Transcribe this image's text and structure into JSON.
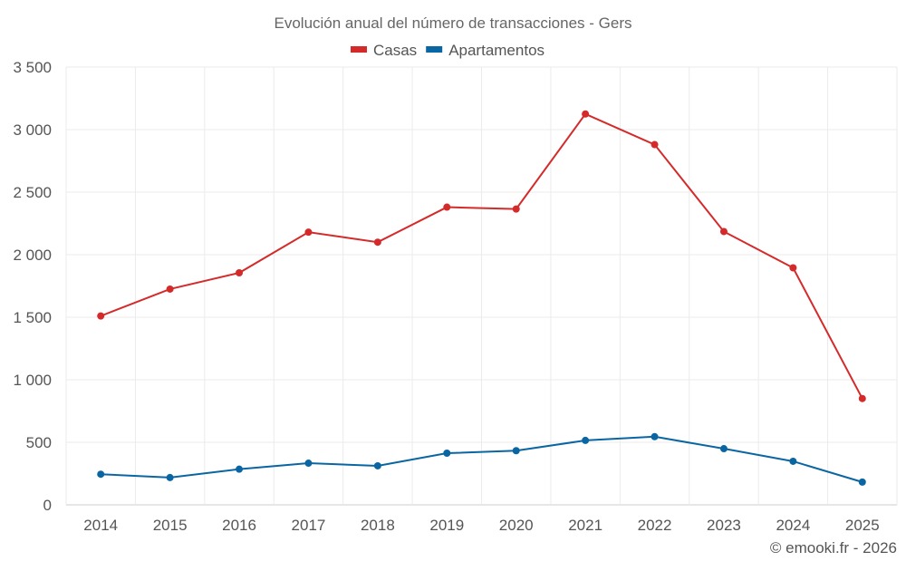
{
  "chart_data": {
    "type": "line",
    "title": "Evolución anual del número de transacciones - Gers",
    "xlabel": "",
    "ylabel": "",
    "categories": [
      "2014",
      "2015",
      "2016",
      "2017",
      "2018",
      "2019",
      "2020",
      "2021",
      "2022",
      "2023",
      "2024",
      "2025"
    ],
    "series": [
      {
        "name": "Casas",
        "color": "#d42a2a",
        "values": [
          1510,
          1725,
          1855,
          2180,
          2100,
          2380,
          2365,
          3125,
          2880,
          2185,
          1895,
          850
        ]
      },
      {
        "name": "Apartamentos",
        "color": "#0a66a3",
        "values": [
          245,
          218,
          285,
          333,
          312,
          413,
          433,
          515,
          545,
          449,
          348,
          182
        ]
      }
    ],
    "ylim": [
      0,
      3500
    ],
    "yticks": [
      0,
      500,
      1000,
      1500,
      2000,
      2500,
      3000,
      3500
    ],
    "ytick_labels": [
      "0",
      "500",
      "1 000",
      "1 500",
      "2 000",
      "2 500",
      "3 000",
      "3 500"
    ],
    "grid": true,
    "legend_position": "top-center"
  },
  "footer": {
    "credit": "© emooki.fr - 2026"
  }
}
